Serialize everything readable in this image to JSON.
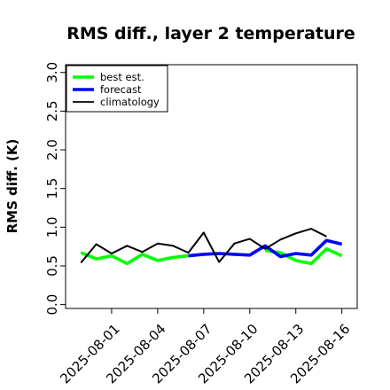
{
  "chart_data": {
    "type": "line",
    "title": "RMS diff., layer 2 temperature",
    "ylabel": "RMS diff. (K)",
    "xlabel": "",
    "ylim": [
      -0.05,
      3.1
    ],
    "yticks": [
      0.0,
      0.5,
      1.0,
      1.5,
      2.0,
      2.5,
      3.0
    ],
    "ytick_labels": [
      "0.0",
      "0.5",
      "1.0",
      "1.5",
      "2.0",
      "2.5",
      "3.0"
    ],
    "x": [
      "2025-07-30",
      "2025-07-31",
      "2025-08-01",
      "2025-08-02",
      "2025-08-03",
      "2025-08-04",
      "2025-08-05",
      "2025-08-06",
      "2025-08-07",
      "2025-08-08",
      "2025-08-09",
      "2025-08-10",
      "2025-08-11",
      "2025-08-12",
      "2025-08-13",
      "2025-08-14",
      "2025-08-15",
      "2025-08-16"
    ],
    "xlim": [
      "2025-07-29",
      "2025-08-17"
    ],
    "xticks": [
      "2025-08-01",
      "2025-08-04",
      "2025-08-07",
      "2025-08-10",
      "2025-08-13",
      "2025-08-16"
    ],
    "highlighted_tick": "2025-08-07",
    "highlight_color": "#228b22",
    "grid": false,
    "legend_position": "top-left",
    "series": [
      {
        "name": "best est.",
        "color": "#00ff00",
        "values": [
          0.67,
          0.59,
          0.63,
          0.53,
          0.65,
          0.57,
          0.61,
          0.63,
          null,
          null,
          null,
          null,
          0.7,
          0.67,
          0.57,
          0.53,
          0.72,
          0.63
        ]
      },
      {
        "name": "forecast",
        "color": "#0000ff",
        "values": [
          null,
          null,
          null,
          null,
          null,
          null,
          null,
          0.63,
          0.65,
          0.66,
          0.65,
          0.64,
          0.76,
          0.62,
          0.66,
          0.64,
          0.83,
          0.78
        ]
      },
      {
        "name": "climatology",
        "color": "#000000",
        "values": [
          0.54,
          0.78,
          0.66,
          0.76,
          0.68,
          0.79,
          0.76,
          0.67,
          0.93,
          0.55,
          0.79,
          0.85,
          0.72,
          0.84,
          0.92,
          0.98,
          0.88,
          null
        ]
      }
    ]
  }
}
